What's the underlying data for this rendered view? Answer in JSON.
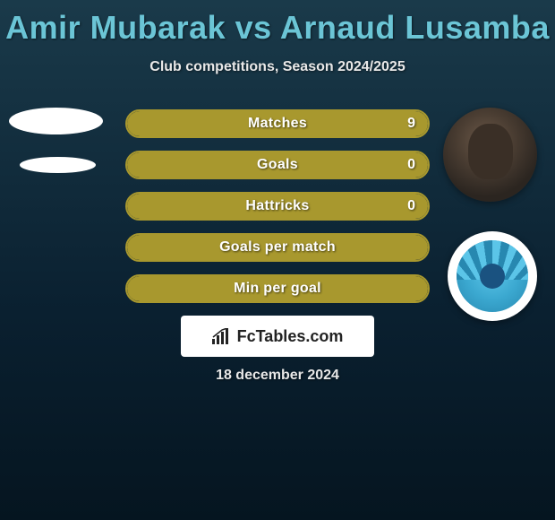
{
  "header": {
    "title": "Amir Mubarak vs Arnaud Lusamba",
    "subtitle": "Club competitions, Season 2024/2025",
    "title_color": "#6bc5d6"
  },
  "stats": {
    "bar_border_color": "#a8982e",
    "bar_fill_color": "#a8982e",
    "rows": [
      {
        "label": "Matches",
        "value": "9",
        "fill_pct": 100
      },
      {
        "label": "Goals",
        "value": "0",
        "fill_pct": 100
      },
      {
        "label": "Hattricks",
        "value": "0",
        "fill_pct": 100
      },
      {
        "label": "Goals per match",
        "value": "",
        "fill_pct": 100
      },
      {
        "label": "Min per goal",
        "value": "",
        "fill_pct": 100
      }
    ]
  },
  "brand": {
    "logo_text": "FcTables.com"
  },
  "footer": {
    "date": "18 december 2024"
  },
  "players": {
    "left_icon": "player-silhouette",
    "right_icon": "player-photo",
    "right_badge_icon": "club-crest"
  }
}
